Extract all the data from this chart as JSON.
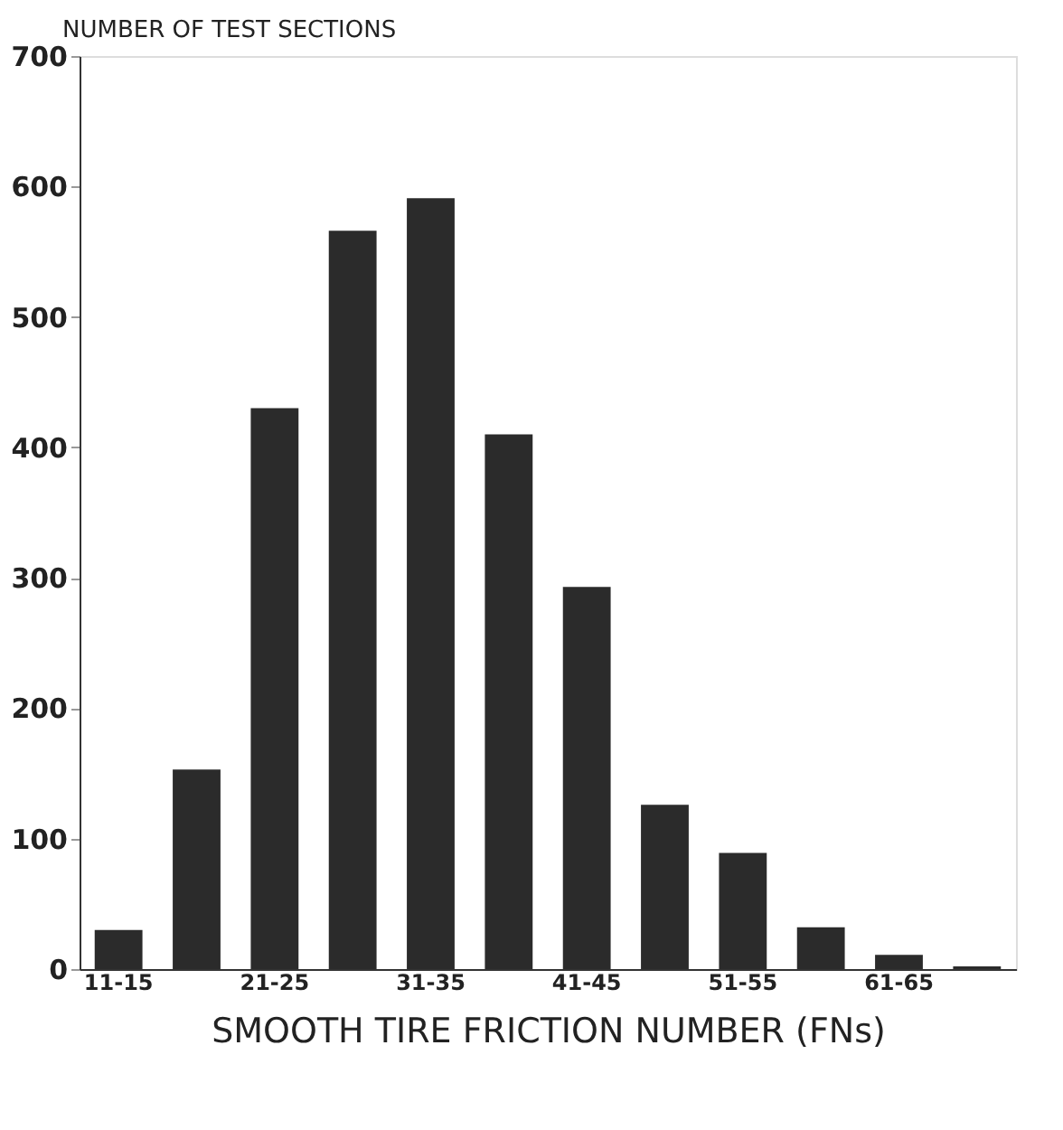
{
  "chart_data": {
    "type": "bar",
    "categories": [
      "11-15",
      null,
      "21-25",
      null,
      "31-35",
      null,
      "41-45",
      null,
      "51-55",
      null,
      "61-65",
      null
    ],
    "values": [
      30,
      153,
      430,
      566,
      591,
      410,
      293,
      126,
      89,
      32,
      11,
      2
    ],
    "color": "#2b2b2b",
    "ylabel": "NUMBER OF TEST SECTIONS",
    "xlabel": "SMOOTH TIRE FRICTION NUMBER (FNs)",
    "ylim": [
      0,
      700
    ],
    "yticks": [
      0,
      100,
      200,
      300,
      400,
      500,
      600,
      700
    ],
    "grid": false
  }
}
